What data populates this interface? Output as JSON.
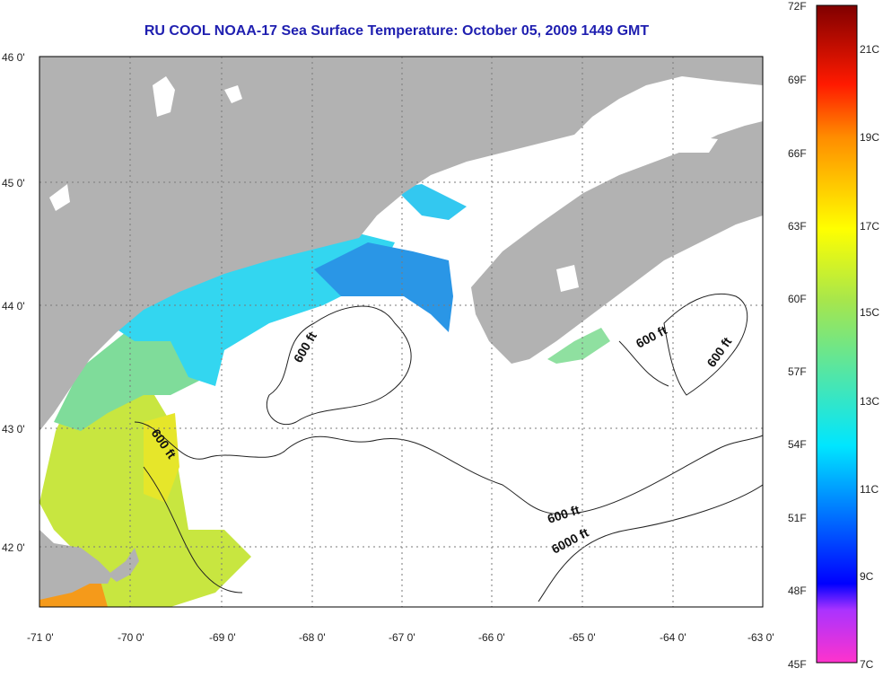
{
  "title": "RU COOL  NOAA-17  Sea Surface Temperature:  October 05, 2009 1449 GMT",
  "map": {
    "lon_range": [
      -71,
      -63
    ],
    "lat_range": [
      41.5,
      46
    ],
    "lon_ticks": [
      "-71 0'",
      "-70 0'",
      "-69 0'",
      "-68 0'",
      "-67 0'",
      "-66 0'",
      "-65 0'",
      "-64 0'",
      "-63 0'"
    ],
    "lat_ticks": [
      "46 0'",
      "45 0'",
      "44 0'",
      "43 0'",
      "42 0'"
    ],
    "contour_labels": [
      "600 ft",
      "600 ft",
      "600 ft",
      "600 ft",
      "600 ft",
      "6000 ft"
    ],
    "colors": {
      "land": "#b2b2b2",
      "water": "#ffffff",
      "grid": "#7a7a7a"
    }
  },
  "colorbar": {
    "fahrenheit_labels": [
      "72F",
      "69F",
      "66F",
      "63F",
      "60F",
      "57F",
      "54F",
      "51F",
      "48F",
      "45F"
    ],
    "celsius_labels": [
      "21C",
      "19C",
      "17C",
      "15C",
      "13C",
      "11C",
      "9C",
      "7C"
    ],
    "range_f": [
      45,
      72
    ]
  }
}
